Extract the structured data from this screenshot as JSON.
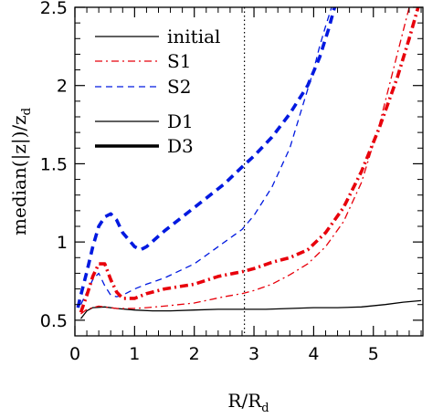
{
  "chart_data": {
    "type": "line",
    "xlabel": "R/R",
    "xlabel_sub": "d",
    "ylabel": "median(|z|)/z",
    "ylabel_sub": "d",
    "xlim": [
      0,
      5.83
    ],
    "ylim": [
      0.4,
      2.5
    ],
    "x_ticks": [
      "0",
      "1",
      "2",
      "3",
      "4",
      "5"
    ],
    "x_tick_values": [
      0,
      1,
      2,
      3,
      4,
      5
    ],
    "y_ticks": [
      "0.5",
      "1",
      "1.5",
      "2",
      "2.5"
    ],
    "y_tick_values": [
      0.5,
      1,
      1.5,
      2,
      2.5
    ],
    "vertical_reference_x": 2.84,
    "legend_position": "top-left",
    "legend": [
      {
        "label": "initial",
        "color": "#000000",
        "style": "solid",
        "weight": "thin"
      },
      {
        "label": "S1",
        "color": "#e8000b",
        "style": "dash-dot",
        "weight": "thin"
      },
      {
        "label": "S2",
        "color": "#0019e0",
        "style": "dashed",
        "weight": "thin"
      },
      {
        "label": "D1",
        "color": "#000000",
        "style": "solid",
        "weight": "thin"
      },
      {
        "label": "D3",
        "color": "#000000",
        "style": "solid",
        "weight": "thick"
      }
    ],
    "series": [
      {
        "legend_index": 0,
        "color": "#000000",
        "style": "solid",
        "weight": "thin",
        "x": [
          0.1,
          0.2,
          0.3,
          0.5,
          0.7,
          1.0,
          1.3,
          1.6,
          2.0,
          2.4,
          2.8,
          3.2,
          3.6,
          4.0,
          4.4,
          4.8,
          5.2,
          5.5,
          5.8
        ],
        "y": [
          0.51,
          0.56,
          0.58,
          0.585,
          0.575,
          0.565,
          0.56,
          0.56,
          0.565,
          0.57,
          0.57,
          0.57,
          0.575,
          0.58,
          0.58,
          0.585,
          0.6,
          0.615,
          0.625
        ]
      },
      {
        "legend_index": 1,
        "color": "#e8000b",
        "style": "dash-dot",
        "weight": "thin",
        "x": [
          0.1,
          0.2,
          0.3,
          0.4,
          0.5,
          0.6,
          0.7,
          0.8,
          1.0,
          1.2,
          1.5,
          2.0,
          2.5,
          2.8,
          3.0,
          3.3,
          3.6,
          3.9,
          4.2,
          4.5,
          4.8,
          5.1,
          5.4,
          5.6
        ],
        "y": [
          0.54,
          0.57,
          0.58,
          0.59,
          0.585,
          0.58,
          0.575,
          0.575,
          0.575,
          0.58,
          0.59,
          0.61,
          0.65,
          0.67,
          0.69,
          0.73,
          0.79,
          0.86,
          0.97,
          1.13,
          1.38,
          1.75,
          2.2,
          2.5
        ]
      },
      {
        "legend_index": 2,
        "color": "#0019e0",
        "style": "dashed",
        "weight": "thin",
        "x": [
          0.1,
          0.2,
          0.3,
          0.4,
          0.5,
          0.6,
          0.7,
          0.8,
          1.0,
          1.2,
          1.5,
          2.0,
          2.4,
          2.8,
          3.0,
          3.3,
          3.6,
          3.8,
          4.0,
          4.1,
          4.2,
          4.3
        ],
        "y": [
          0.6,
          0.68,
          0.76,
          0.8,
          0.72,
          0.66,
          0.65,
          0.66,
          0.7,
          0.73,
          0.77,
          0.86,
          0.97,
          1.08,
          1.17,
          1.35,
          1.6,
          1.85,
          2.1,
          2.25,
          2.38,
          2.5
        ]
      },
      {
        "legend_index": 4,
        "color": "#e8000b",
        "style": "dash-dot",
        "weight": "thick",
        "x": [
          0.1,
          0.2,
          0.3,
          0.4,
          0.5,
          0.6,
          0.7,
          0.8,
          1.0,
          1.2,
          1.5,
          2.0,
          2.4,
          2.8,
          3.0,
          3.3,
          3.6,
          3.9,
          4.2,
          4.5,
          4.8,
          5.1,
          5.4,
          5.6,
          5.75
        ],
        "y": [
          0.55,
          0.66,
          0.78,
          0.86,
          0.86,
          0.76,
          0.68,
          0.64,
          0.64,
          0.67,
          0.7,
          0.73,
          0.78,
          0.81,
          0.83,
          0.87,
          0.9,
          0.95,
          1.06,
          1.22,
          1.45,
          1.73,
          2.05,
          2.3,
          2.5
        ]
      },
      {
        "legend_index": 4,
        "color": "#0019e0",
        "style": "dashed",
        "weight": "thick",
        "x": [
          0.05,
          0.1,
          0.2,
          0.3,
          0.4,
          0.5,
          0.6,
          0.7,
          0.8,
          1.0,
          1.1,
          1.2,
          1.5,
          2.0,
          2.5,
          2.8,
          3.0,
          3.3,
          3.6,
          3.9,
          4.1,
          4.25,
          4.35
        ],
        "y": [
          0.58,
          0.66,
          0.81,
          0.97,
          1.1,
          1.16,
          1.18,
          1.14,
          1.06,
          0.97,
          0.95,
          0.97,
          1.07,
          1.22,
          1.37,
          1.48,
          1.55,
          1.67,
          1.82,
          2.0,
          2.18,
          2.36,
          2.5
        ]
      }
    ]
  }
}
